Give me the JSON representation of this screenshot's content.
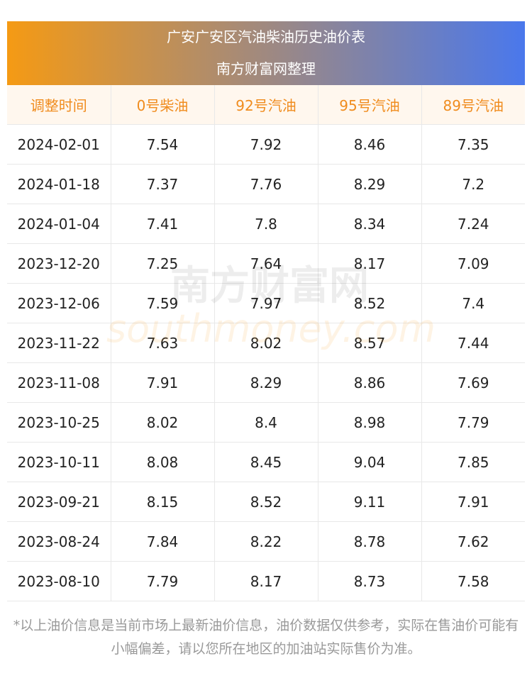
{
  "header": {
    "title": "广安广安区汽油柴油历史油价表",
    "subtitle": "南方财富网整理"
  },
  "table": {
    "columns": [
      "调整时间",
      "0号柴油",
      "92号汽油",
      "95号汽油",
      "89号汽油"
    ],
    "rows": [
      [
        "2024-02-01",
        "7.54",
        "7.92",
        "8.46",
        "7.35"
      ],
      [
        "2024-01-18",
        "7.37",
        "7.76",
        "8.29",
        "7.2"
      ],
      [
        "2024-01-04",
        "7.41",
        "7.8",
        "8.34",
        "7.24"
      ],
      [
        "2023-12-20",
        "7.25",
        "7.64",
        "8.17",
        "7.09"
      ],
      [
        "2023-12-06",
        "7.59",
        "7.97",
        "8.52",
        "7.4"
      ],
      [
        "2023-11-22",
        "7.63",
        "8.02",
        "8.57",
        "7.44"
      ],
      [
        "2023-11-08",
        "7.91",
        "8.29",
        "8.86",
        "7.69"
      ],
      [
        "2023-10-25",
        "8.02",
        "8.4",
        "8.98",
        "7.79"
      ],
      [
        "2023-10-11",
        "8.08",
        "8.45",
        "9.04",
        "7.85"
      ],
      [
        "2023-09-21",
        "8.15",
        "8.52",
        "9.11",
        "7.91"
      ],
      [
        "2023-08-24",
        "7.84",
        "8.22",
        "8.78",
        "7.62"
      ],
      [
        "2023-08-10",
        "7.79",
        "8.17",
        "8.73",
        "7.58"
      ]
    ]
  },
  "watermark": {
    "cn": "南方财富网",
    "en": "southmoney.com"
  },
  "footer": {
    "note": "*以上油价信息是当前市场上最新油价信息，油价数据仅供参考，实际在售油价可能有小幅偏差，请以您所在地区的加油站实际售价为准。"
  }
}
